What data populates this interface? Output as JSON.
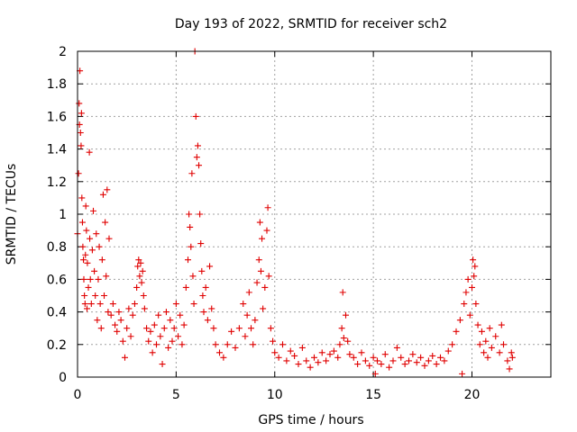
{
  "chart_data": {
    "type": "scatter",
    "title": "Day 193 of 2022, SRMTID for receiver sch2",
    "xlabel": "GPS time / hours",
    "ylabel": "SRMTID / TECUs",
    "xlim": [
      0,
      24
    ],
    "ylim": [
      0,
      2
    ],
    "xticks": [
      0,
      5,
      10,
      15,
      20
    ],
    "yticks": [
      0,
      0.2,
      0.4,
      0.6,
      0.8,
      1,
      1.2,
      1.4,
      1.6,
      1.8,
      2
    ],
    "xtick_labels": [
      "0",
      "5",
      "10",
      "15",
      "20"
    ],
    "ytick_labels": [
      "0",
      "0.2",
      "0.4",
      "0.6",
      "0.8",
      "1",
      "1.2",
      "1.4",
      "1.6",
      "1.8",
      "2"
    ],
    "grid": true,
    "marker": "+",
    "color": "#e00000",
    "series": [
      {
        "name": "sch2",
        "points": [
          [
            0.0,
            0.88
          ],
          [
            0.05,
            1.25
          ],
          [
            0.08,
            1.68
          ],
          [
            0.1,
            1.55
          ],
          [
            0.12,
            1.88
          ],
          [
            0.15,
            1.5
          ],
          [
            0.18,
            1.42
          ],
          [
            0.2,
            1.62
          ],
          [
            0.22,
            1.1
          ],
          [
            0.25,
            0.95
          ],
          [
            0.27,
            0.8
          ],
          [
            0.3,
            0.72
          ],
          [
            0.32,
            0.6
          ],
          [
            0.35,
            0.5
          ],
          [
            0.38,
            0.45
          ],
          [
            0.4,
            0.75
          ],
          [
            0.42,
            1.05
          ],
          [
            0.45,
            0.9
          ],
          [
            0.48,
            0.42
          ],
          [
            0.5,
            0.7
          ],
          [
            0.55,
            0.55
          ],
          [
            0.6,
            1.38
          ],
          [
            0.62,
            0.85
          ],
          [
            0.65,
            0.6
          ],
          [
            0.7,
            0.45
          ],
          [
            0.75,
            0.78
          ],
          [
            0.8,
            1.02
          ],
          [
            0.85,
            0.65
          ],
          [
            0.9,
            0.5
          ],
          [
            0.95,
            0.88
          ],
          [
            1.0,
            0.35
          ],
          [
            1.05,
            0.6
          ],
          [
            1.1,
            0.8
          ],
          [
            1.15,
            0.45
          ],
          [
            1.2,
            0.3
          ],
          [
            1.25,
            0.72
          ],
          [
            1.3,
            1.12
          ],
          [
            1.35,
            0.5
          ],
          [
            1.4,
            0.95
          ],
          [
            1.45,
            0.62
          ],
          [
            1.5,
            1.15
          ],
          [
            1.55,
            0.4
          ],
          [
            1.6,
            0.85
          ],
          [
            1.7,
            0.38
          ],
          [
            1.8,
            0.45
          ],
          [
            1.9,
            0.32
          ],
          [
            2.0,
            0.28
          ],
          [
            2.1,
            0.4
          ],
          [
            2.2,
            0.35
          ],
          [
            2.3,
            0.22
          ],
          [
            2.4,
            0.12
          ],
          [
            2.5,
            0.3
          ],
          [
            2.6,
            0.42
          ],
          [
            2.7,
            0.25
          ],
          [
            2.8,
            0.38
          ],
          [
            2.9,
            0.45
          ],
          [
            3.0,
            0.55
          ],
          [
            3.05,
            0.68
          ],
          [
            3.1,
            0.72
          ],
          [
            3.15,
            0.62
          ],
          [
            3.2,
            0.7
          ],
          [
            3.25,
            0.58
          ],
          [
            3.3,
            0.65
          ],
          [
            3.35,
            0.5
          ],
          [
            3.4,
            0.42
          ],
          [
            3.5,
            0.3
          ],
          [
            3.6,
            0.22
          ],
          [
            3.7,
            0.28
          ],
          [
            3.8,
            0.15
          ],
          [
            3.9,
            0.32
          ],
          [
            4.0,
            0.2
          ],
          [
            4.1,
            0.38
          ],
          [
            4.2,
            0.25
          ],
          [
            4.3,
            0.08
          ],
          [
            4.4,
            0.3
          ],
          [
            4.5,
            0.4
          ],
          [
            4.6,
            0.18
          ],
          [
            4.7,
            0.35
          ],
          [
            4.8,
            0.22
          ],
          [
            4.9,
            0.3
          ],
          [
            5.0,
            0.45
          ],
          [
            5.1,
            0.25
          ],
          [
            5.2,
            0.38
          ],
          [
            5.3,
            0.2
          ],
          [
            5.4,
            0.32
          ],
          [
            5.5,
            0.55
          ],
          [
            5.6,
            0.72
          ],
          [
            5.65,
            1.0
          ],
          [
            5.7,
            0.92
          ],
          [
            5.75,
            0.8
          ],
          [
            5.8,
            1.25
          ],
          [
            5.85,
            0.62
          ],
          [
            5.9,
            0.45
          ],
          [
            5.95,
            2.0
          ],
          [
            6.0,
            1.6
          ],
          [
            6.05,
            1.35
          ],
          [
            6.1,
            1.42
          ],
          [
            6.15,
            1.3
          ],
          [
            6.2,
            1.0
          ],
          [
            6.25,
            0.82
          ],
          [
            6.3,
            0.65
          ],
          [
            6.35,
            0.5
          ],
          [
            6.4,
            0.4
          ],
          [
            6.5,
            0.55
          ],
          [
            6.6,
            0.35
          ],
          [
            6.7,
            0.68
          ],
          [
            6.8,
            0.42
          ],
          [
            6.9,
            0.3
          ],
          [
            7.0,
            0.2
          ],
          [
            7.2,
            0.15
          ],
          [
            7.4,
            0.12
          ],
          [
            7.6,
            0.2
          ],
          [
            7.8,
            0.28
          ],
          [
            8.0,
            0.18
          ],
          [
            8.2,
            0.3
          ],
          [
            8.4,
            0.45
          ],
          [
            8.5,
            0.25
          ],
          [
            8.6,
            0.38
          ],
          [
            8.7,
            0.52
          ],
          [
            8.8,
            0.3
          ],
          [
            8.9,
            0.2
          ],
          [
            9.0,
            0.35
          ],
          [
            9.1,
            0.58
          ],
          [
            9.2,
            0.72
          ],
          [
            9.25,
            0.95
          ],
          [
            9.3,
            0.65
          ],
          [
            9.35,
            0.85
          ],
          [
            9.4,
            0.42
          ],
          [
            9.5,
            0.55
          ],
          [
            9.6,
            0.9
          ],
          [
            9.65,
            1.04
          ],
          [
            9.7,
            0.62
          ],
          [
            9.8,
            0.3
          ],
          [
            9.9,
            0.22
          ],
          [
            10.0,
            0.15
          ],
          [
            10.2,
            0.12
          ],
          [
            10.4,
            0.2
          ],
          [
            10.6,
            0.1
          ],
          [
            10.8,
            0.16
          ],
          [
            11.0,
            0.13
          ],
          [
            11.2,
            0.08
          ],
          [
            11.4,
            0.18
          ],
          [
            11.6,
            0.1
          ],
          [
            11.8,
            0.06
          ],
          [
            12.0,
            0.12
          ],
          [
            12.2,
            0.09
          ],
          [
            12.4,
            0.15
          ],
          [
            12.6,
            0.1
          ],
          [
            12.8,
            0.14
          ],
          [
            13.0,
            0.16
          ],
          [
            13.2,
            0.12
          ],
          [
            13.3,
            0.2
          ],
          [
            13.4,
            0.3
          ],
          [
            13.45,
            0.52
          ],
          [
            13.5,
            0.24
          ],
          [
            13.6,
            0.38
          ],
          [
            13.7,
            0.22
          ],
          [
            13.8,
            0.14
          ],
          [
            14.0,
            0.12
          ],
          [
            14.2,
            0.08
          ],
          [
            14.4,
            0.15
          ],
          [
            14.6,
            0.1
          ],
          [
            14.8,
            0.07
          ],
          [
            15.0,
            0.12
          ],
          [
            15.1,
            0.02
          ],
          [
            15.2,
            0.1
          ],
          [
            15.4,
            0.08
          ],
          [
            15.6,
            0.14
          ],
          [
            15.8,
            0.06
          ],
          [
            16.0,
            0.1
          ],
          [
            16.2,
            0.18
          ],
          [
            16.4,
            0.12
          ],
          [
            16.6,
            0.08
          ],
          [
            16.8,
            0.1
          ],
          [
            17.0,
            0.14
          ],
          [
            17.2,
            0.09
          ],
          [
            17.4,
            0.12
          ],
          [
            17.6,
            0.07
          ],
          [
            17.8,
            0.1
          ],
          [
            18.0,
            0.13
          ],
          [
            18.2,
            0.08
          ],
          [
            18.4,
            0.12
          ],
          [
            18.6,
            0.1
          ],
          [
            18.8,
            0.16
          ],
          [
            19.0,
            0.2
          ],
          [
            19.2,
            0.28
          ],
          [
            19.4,
            0.35
          ],
          [
            19.5,
            0.02
          ],
          [
            19.6,
            0.45
          ],
          [
            19.7,
            0.52
          ],
          [
            19.8,
            0.6
          ],
          [
            19.9,
            0.38
          ],
          [
            20.0,
            0.55
          ],
          [
            20.05,
            0.72
          ],
          [
            20.1,
            0.62
          ],
          [
            20.15,
            0.68
          ],
          [
            20.2,
            0.45
          ],
          [
            20.3,
            0.32
          ],
          [
            20.4,
            0.2
          ],
          [
            20.5,
            0.28
          ],
          [
            20.6,
            0.15
          ],
          [
            20.7,
            0.22
          ],
          [
            20.8,
            0.12
          ],
          [
            20.9,
            0.3
          ],
          [
            21.0,
            0.18
          ],
          [
            21.2,
            0.25
          ],
          [
            21.4,
            0.15
          ],
          [
            21.5,
            0.32
          ],
          [
            21.6,
            0.2
          ],
          [
            21.8,
            0.1
          ],
          [
            21.9,
            0.05
          ],
          [
            22.0,
            0.15
          ],
          [
            22.05,
            0.12
          ]
        ]
      }
    ]
  }
}
